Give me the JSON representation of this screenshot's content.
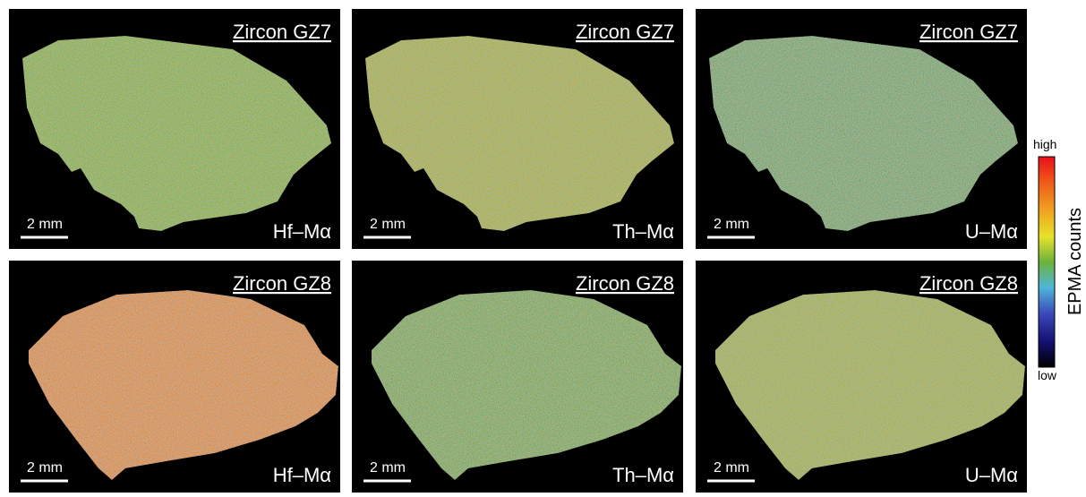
{
  "panels": [
    {
      "title": "Zircon GZ7",
      "scale": "2 mm",
      "element": "Hf–Mα"
    },
    {
      "title": "Zircon GZ7",
      "scale": "2 mm",
      "element": "Th–Mα"
    },
    {
      "title": "Zircon GZ7",
      "scale": "2 mm",
      "element": "U–Mα"
    },
    {
      "title": "Zircon GZ8",
      "scale": "2 mm",
      "element": "Hf–Mα"
    },
    {
      "title": "Zircon GZ8",
      "scale": "2 mm",
      "element": "Th–Mα"
    },
    {
      "title": "Zircon GZ8",
      "scale": "2 mm",
      "element": "U–Mα"
    }
  ],
  "colorbar": {
    "high": "high",
    "low": "low",
    "label": "EPMA counts"
  }
}
